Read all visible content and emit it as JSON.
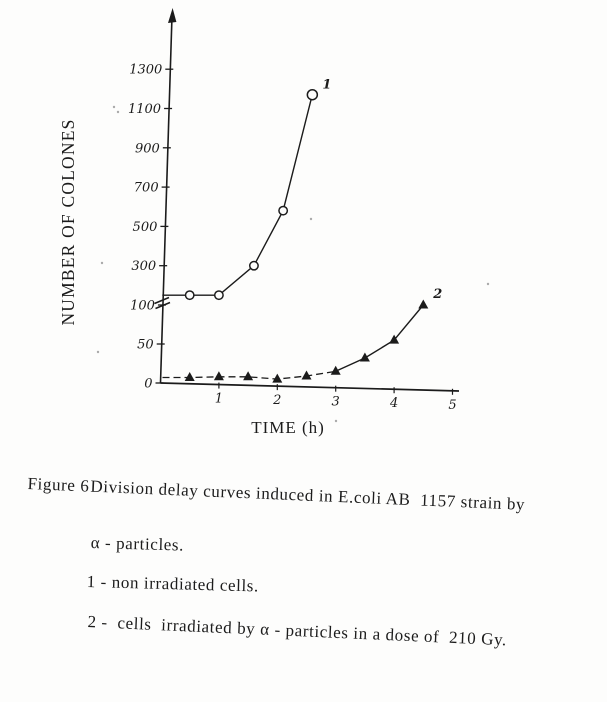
{
  "chart_data": {
    "type": "line",
    "title": "",
    "xlabel": "TIME (h)",
    "ylabel": "NUMBER OF COLONES",
    "x_ticks": [
      1,
      2,
      3,
      4,
      5
    ],
    "y_axis": {
      "broken": true,
      "lower_ticks": [
        0,
        50,
        100
      ],
      "upper_ticks": [
        300,
        500,
        700,
        900,
        1100,
        1300
      ],
      "lower_range": [
        0,
        100
      ],
      "upper_range": [
        100,
        1400
      ]
    },
    "grid": false,
    "legend_position": "none",
    "series": [
      {
        "name": "1",
        "description": "non irradiated cells",
        "marker": "open-circle",
        "line_style": "solid",
        "x": [
          0.5,
          1.0,
          1.6,
          2.1,
          2.6
        ],
        "values": [
          150,
          150,
          300,
          580,
          1170
        ]
      },
      {
        "name": "2",
        "description": "cells irradiated by α - particles in a dose of 210 Gy",
        "marker": "filled-triangle",
        "line_style": "dashed-then-solid",
        "x": [
          0.5,
          1.0,
          1.5,
          2.0,
          2.5,
          3.0,
          3.5,
          4.0,
          4.5
        ],
        "values": [
          7,
          8,
          8,
          5,
          9,
          15,
          32,
          55,
          100
        ]
      }
    ]
  },
  "caption": {
    "figure_label": "Figure 6",
    "title_rest": "Division delay curves induced in E.coli AB  1157 strain by",
    "title_cont": "α - particles.",
    "legend1": "1 - non irradiated cells.",
    "legend2": "2 -  cells  irradiated by α - particles in a dose of  210 Gy."
  }
}
